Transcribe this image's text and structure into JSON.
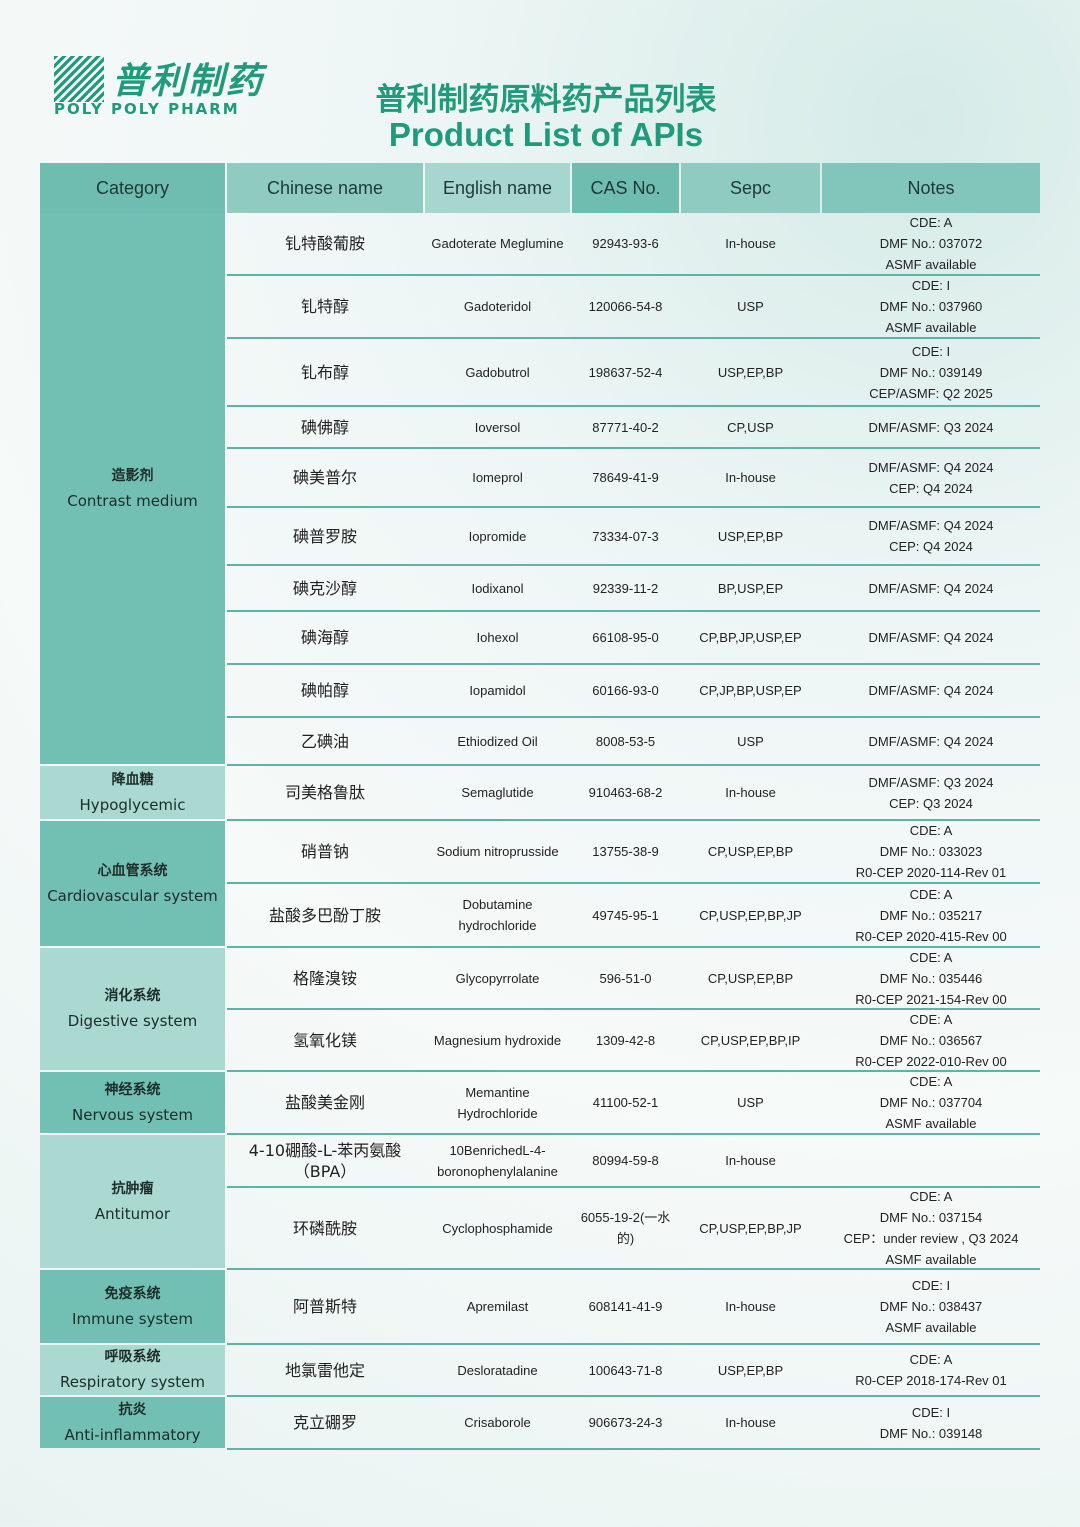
{
  "logo": {
    "cn": "普利制药",
    "en": "POLY  POLY PHARM"
  },
  "title": {
    "cn": "普利制药原料药产品列表",
    "en": "Product List of APIs"
  },
  "colors": {
    "brand": "#1f9a7a",
    "header": "#7ec4b9",
    "category_dark": "#72bfb3",
    "category_light": "#a9d9d0",
    "row_line": "#5fb3a6"
  },
  "headers": [
    "Category",
    "Chinese name",
    "English name",
    "CAS No.",
    "Sepc",
    "Notes"
  ],
  "categories": [
    {
      "cn": "造影剂",
      "en": "Contrast medium",
      "rows": 10
    },
    {
      "cn": "降血糖",
      "en": "Hypoglycemic",
      "rows": 1
    },
    {
      "cn": "心血管系统",
      "en": "Cardiovascular system",
      "rows": 2
    },
    {
      "cn": "消化系统",
      "en": "Digestive system",
      "rows": 2
    },
    {
      "cn": "神经系统",
      "en": "Nervous system",
      "rows": 1
    },
    {
      "cn": "抗肿瘤",
      "en": "Antitumor",
      "rows": 2
    },
    {
      "cn": "免疫系统",
      "en": "Immune system",
      "rows": 1
    },
    {
      "cn": "呼吸系统",
      "en": "Respiratory system",
      "rows": 1
    },
    {
      "cn": "抗炎",
      "en": "Anti-inflammatory",
      "rows": 1
    }
  ],
  "products": [
    {
      "cn": "钆特酸葡胺",
      "en": "Gadoterate Meglumine",
      "cas": "92943-93-6",
      "spec": "In-house",
      "notes": "CDE: A\nDMF No.: 037072\nASMF available"
    },
    {
      "cn": "钆特醇",
      "en": "Gadoteridol",
      "cas": "120066-54-8",
      "spec": "USP",
      "notes": "CDE: I\nDMF No.: 037960\nASMF available"
    },
    {
      "cn": "钆布醇",
      "en": "Gadobutrol",
      "cas": "198637-52-4",
      "spec": "USP,EP,BP",
      "notes": "CDE: I\nDMF No.: 039149\nCEP/ASMF:  Q2 2025"
    },
    {
      "cn": "碘佛醇",
      "en": "Ioversol",
      "cas": "87771-40-2",
      "spec": "CP,USP",
      "notes": "DMF/ASMF:   Q3 2024"
    },
    {
      "cn": "碘美普尔",
      "en": "Iomeprol",
      "cas": "78649-41-9",
      "spec": "In-house",
      "notes": "DMF/ASMF: Q4 2024\nCEP:  Q4 2024"
    },
    {
      "cn": "碘普罗胺",
      "en": "Iopromide",
      "cas": "73334-07-3",
      "spec": "USP,EP,BP",
      "notes": "DMF/ASMF: Q4 2024\nCEP:   Q4 2024"
    },
    {
      "cn": "碘克沙醇",
      "en": "Iodixanol",
      "cas": "92339-11-2",
      "spec": "BP,USP,EP",
      "notes": "DMF/ASMF:   Q4 2024"
    },
    {
      "cn": "碘海醇",
      "en": "Iohexol",
      "cas": "66108-95-0",
      "spec": "CP,BP,JP,USP,EP",
      "notes": "DMF/ASMF:  Q4 2024"
    },
    {
      "cn": "碘帕醇",
      "en": "Iopamidol",
      "cas": "60166-93-0",
      "spec": "CP,JP,BP,USP,EP",
      "notes": "DMF/ASMF:   Q4 2024"
    },
    {
      "cn": "乙碘油",
      "en": "Ethiodized Oil",
      "cas": "8008-53-5",
      "spec": "USP",
      "notes": "DMF/ASMF:   Q4 2024"
    },
    {
      "cn": "司美格鲁肽",
      "en": "Semaglutide",
      "cas": "910463-68-2",
      "spec": "In-house",
      "notes": "DMF/ASMF: Q3 2024\nCEP:   Q3 2024"
    },
    {
      "cn": "硝普钠",
      "en": "Sodium nitroprusside",
      "cas": "13755-38-9",
      "spec": "CP,USP,EP,BP",
      "notes": "CDE: A\nDMF No.: 033023\nR0-CEP 2020-114-Rev 01"
    },
    {
      "cn": "盐酸多巴酚丁胺",
      "en": "Dobutamine\nhydrochloride",
      "cas": "49745-95-1",
      "spec": "CP,USP,EP,BP,JP",
      "notes": "CDE: A\nDMF No.: 035217\nR0-CEP 2020-415-Rev 00"
    },
    {
      "cn": "格隆溴铵",
      "en": "Glycopyrrolate",
      "cas": "596-51-0",
      "spec": "CP,USP,EP,BP",
      "notes": "CDE: A\nDMF No.: 035446\nR0-CEP 2021-154-Rev 00"
    },
    {
      "cn": "氢氧化镁",
      "en": "Magnesium hydroxide",
      "cas": "1309-42-8",
      "spec": "CP,USP,EP,BP,IP",
      "notes": "CDE: A\nDMF No.: 036567\nR0-CEP 2022-010-Rev 00"
    },
    {
      "cn": "盐酸美金刚",
      "en": "Memantine\nHydrochloride",
      "cas": "41100-52-1",
      "spec": "USP",
      "notes": "CDE: A\nDMF No.: 037704\nASMF available"
    },
    {
      "cn": "4-10硼酸-L-苯丙氨酸\n（BPA）",
      "en": "10BenrichedL-4-\nboronophenylalanine",
      "cas": "80994-59-8",
      "spec": "In-house",
      "notes": ""
    },
    {
      "cn": "环磷酰胺",
      "en": "Cyclophosphamide",
      "cas": "6055-19-2(一水\n的)",
      "spec": "CP,USP,EP,BP,JP",
      "notes": "CDE: A\nDMF No.: 037154\nCEP：under review , Q3 2024\nASMF available"
    },
    {
      "cn": "阿普斯特",
      "en": "Apremilast",
      "cas": "608141-41-9",
      "spec": "In-house",
      "notes": "CDE: I\nDMF No.: 038437\nASMF available"
    },
    {
      "cn": "地氯雷他定",
      "en": "Desloratadine",
      "cas": "100643-71-8",
      "spec": "USP,EP,BP",
      "notes": "CDE: A\nR0-CEP 2018-174-Rev 01"
    },
    {
      "cn": "克立硼罗",
      "en": "Crisaborole",
      "cas": "906673-24-3",
      "spec": "In-house",
      "notes": "CDE: I\nDMF No.: 039148"
    }
  ]
}
